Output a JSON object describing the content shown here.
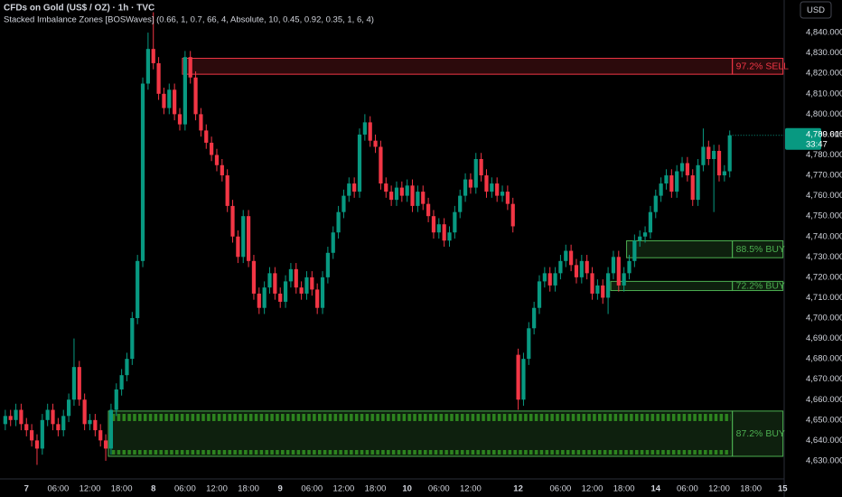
{
  "chart_data": {
    "type": "candlestick",
    "title": "CFDs on Gold (US$ / OZ) · 1h · TVC",
    "subtitle": "Stacked Imbalance Zones [BOSWaves] (0.66, 1, 0.7, 66, 4, Absolute, 10, 0.45, 0.92, 0.35, 1, 6, 4)",
    "currency": "USD",
    "up_color": "#089981",
    "down_color": "#f23645",
    "grid": false,
    "open": [
      4648,
      4652,
      4650,
      4655,
      4648,
      4645,
      4640,
      4636,
      4650,
      4655,
      4648,
      4645,
      4652,
      4660,
      4676,
      4660,
      4648,
      4650,
      4645,
      4640,
      4636,
      4655,
      4665,
      4672,
      4680,
      4700,
      4728,
      4815,
      4832,
      4825,
      4810,
      4803,
      4812,
      4800,
      4795,
      4828,
      4818,
      4800,
      4792,
      4786,
      4780,
      4775,
      4770,
      4755,
      4740,
      4730,
      4750,
      4728,
      4712,
      4705,
      4715,
      4722,
      4712,
      4708,
      4718,
      4724,
      4715,
      4712,
      4720,
      4714,
      4705,
      4720,
      4732,
      4742,
      4752,
      4760,
      4766,
      4762,
      4790,
      4796,
      4787,
      4784,
      4766,
      4762,
      4758,
      4764,
      4760,
      4765,
      4755,
      4762,
      4756,
      4750,
      4742,
      4746,
      4738,
      4742,
      4752,
      4760,
      4768,
      4764,
      4778,
      4770,
      4762,
      4766,
      4760,
      4762,
      4756,
      4682,
      4660,
      4680,
      4695,
      4705,
      4718,
      4722,
      4716,
      4722,
      4728,
      4733,
      4726,
      4720,
      4728,
      4722,
      4712,
      4716,
      4710,
      4722,
      4730,
      4716,
      4722,
      4728,
      4738,
      4740,
      4742,
      4752,
      4760,
      4766,
      4770,
      4762,
      4772,
      4776,
      4770,
      4758,
      4775,
      4784,
      4778,
      4782,
      4770,
      4772
    ],
    "high": [
      4655,
      4655,
      4658,
      4658,
      4651,
      4648,
      4643,
      4653,
      4658,
      4658,
      4651,
      4655,
      4663,
      4690,
      4679,
      4663,
      4653,
      4653,
      4648,
      4643,
      4658,
      4668,
      4675,
      4683,
      4703,
      4731,
      4818,
      4840,
      4850,
      4828,
      4813,
      4815,
      4815,
      4803,
      4831,
      4831,
      4821,
      4803,
      4795,
      4789,
      4783,
      4778,
      4773,
      4758,
      4743,
      4753,
      4753,
      4731,
      4715,
      4718,
      4725,
      4725,
      4715,
      4721,
      4727,
      4727,
      4718,
      4723,
      4723,
      4717,
      4723,
      4735,
      4745,
      4755,
      4763,
      4769,
      4769,
      4793,
      4800,
      4799,
      4790,
      4787,
      4769,
      4765,
      4767,
      4767,
      4768,
      4768,
      4765,
      4765,
      4759,
      4753,
      4749,
      4749,
      4745,
      4755,
      4763,
      4771,
      4771,
      4781,
      4781,
      4773,
      4769,
      4769,
      4765,
      4765,
      4759,
      4685,
      4683,
      4698,
      4708,
      4721,
      4725,
      4725,
      4725,
      4731,
      4736,
      4736,
      4729,
      4731,
      4731,
      4725,
      4719,
      4719,
      4725,
      4733,
      4733,
      4725,
      4731,
      4741,
      4743,
      4745,
      4755,
      4763,
      4769,
      4773,
      4773,
      4775,
      4779,
      4779,
      4773,
      4778,
      4793,
      4787,
      4785,
      4785,
      4775,
      4792
    ],
    "low": [
      4645,
      4647,
      4647,
      4645,
      4642,
      4637,
      4628,
      4633,
      4647,
      4645,
      4642,
      4642,
      4649,
      4657,
      4657,
      4645,
      4645,
      4642,
      4637,
      4630,
      4633,
      4652,
      4662,
      4669,
      4677,
      4697,
      4725,
      4812,
      4822,
      4807,
      4800,
      4800,
      4797,
      4792,
      4792,
      4815,
      4797,
      4789,
      4783,
      4777,
      4772,
      4767,
      4752,
      4737,
      4727,
      4727,
      4725,
      4709,
      4702,
      4702,
      4712,
      4709,
      4705,
      4705,
      4715,
      4712,
      4709,
      4709,
      4711,
      4702,
      4702,
      4717,
      4729,
      4739,
      4749,
      4757,
      4759,
      4759,
      4787,
      4784,
      4781,
      4763,
      4759,
      4755,
      4755,
      4757,
      4757,
      4752,
      4752,
      4753,
      4747,
      4739,
      4739,
      4735,
      4735,
      4739,
      4749,
      4757,
      4761,
      4761,
      4767,
      4759,
      4759,
      4757,
      4757,
      4753,
      4742,
      4655,
      4657,
      4677,
      4692,
      4702,
      4715,
      4713,
      4713,
      4719,
      4725,
      4723,
      4717,
      4717,
      4719,
      4709,
      4709,
      4707,
      4702,
      4719,
      4713,
      4713,
      4719,
      4725,
      4735,
      4737,
      4739,
      4749,
      4757,
      4763,
      4759,
      4759,
      4769,
      4767,
      4755,
      4755,
      4772,
      4775,
      4752,
      4767,
      4767,
      4769
    ],
    "close": [
      4652,
      4650,
      4655,
      4648,
      4645,
      4640,
      4636,
      4650,
      4655,
      4648,
      4645,
      4652,
      4660,
      4676,
      4660,
      4648,
      4650,
      4645,
      4640,
      4636,
      4655,
      4665,
      4672,
      4680,
      4700,
      4728,
      4815,
      4832,
      4825,
      4810,
      4803,
      4812,
      4800,
      4795,
      4828,
      4818,
      4800,
      4792,
      4786,
      4780,
      4775,
      4770,
      4755,
      4740,
      4730,
      4750,
      4728,
      4712,
      4705,
      4715,
      4722,
      4712,
      4708,
      4718,
      4724,
      4715,
      4712,
      4720,
      4714,
      4705,
      4720,
      4732,
      4742,
      4752,
      4760,
      4766,
      4762,
      4790,
      4796,
      4787,
      4784,
      4766,
      4762,
      4758,
      4764,
      4760,
      4765,
      4755,
      4762,
      4756,
      4750,
      4742,
      4746,
      4738,
      4742,
      4752,
      4760,
      4768,
      4764,
      4778,
      4770,
      4762,
      4766,
      4760,
      4762,
      4756,
      4745,
      4660,
      4680,
      4695,
      4705,
      4718,
      4722,
      4716,
      4722,
      4728,
      4733,
      4726,
      4720,
      4728,
      4722,
      4712,
      4716,
      4710,
      4722,
      4730,
      4716,
      4722,
      4728,
      4738,
      4740,
      4742,
      4752,
      4760,
      4766,
      4770,
      4762,
      4772,
      4776,
      4770,
      4758,
      4775,
      4784,
      4778,
      4782,
      4770,
      4772,
      4789.615
    ],
    "xlim": [
      -1,
      147.3
    ],
    "xticks": [
      {
        "value": 4,
        "label": "7"
      },
      {
        "value": 10,
        "label": "06:00"
      },
      {
        "value": 16,
        "label": "12:00"
      },
      {
        "value": 22,
        "label": "18:00"
      },
      {
        "value": 28,
        "label": "8"
      },
      {
        "value": 34,
        "label": "06:00"
      },
      {
        "value": 40,
        "label": "12:00"
      },
      {
        "value": 46,
        "label": "18:00"
      },
      {
        "value": 52,
        "label": "9"
      },
      {
        "value": 58,
        "label": "06:00"
      },
      {
        "value": 64,
        "label": "12:00"
      },
      {
        "value": 70,
        "label": "18:00"
      },
      {
        "value": 76,
        "label": "10"
      },
      {
        "value": 82,
        "label": "06:00"
      },
      {
        "value": 88,
        "label": "12:00"
      },
      {
        "value": 97,
        "label": "12"
      },
      {
        "value": 105,
        "label": "06:00"
      },
      {
        "value": 111,
        "label": "12:00"
      },
      {
        "value": 117,
        "label": "18:00"
      },
      {
        "value": 123,
        "label": "14"
      },
      {
        "value": 129,
        "label": "06:00"
      },
      {
        "value": 135,
        "label": "12:00"
      },
      {
        "value": 141,
        "label": "18:00"
      },
      {
        "value": 147,
        "label": "15"
      }
    ],
    "ylim": [
      4622,
      4856
    ],
    "yticks": [
      {
        "value": 4630,
        "label": "4,630.000"
      },
      {
        "value": 4640,
        "label": "4,640.000"
      },
      {
        "value": 4650,
        "label": "4,650.000"
      },
      {
        "value": 4660,
        "label": "4,660.000"
      },
      {
        "value": 4670,
        "label": "4,670.000"
      },
      {
        "value": 4680,
        "label": "4,680.000"
      },
      {
        "value": 4690,
        "label": "4,690.000"
      },
      {
        "value": 4700,
        "label": "4,700.000"
      },
      {
        "value": 4710,
        "label": "4,710.000"
      },
      {
        "value": 4720,
        "label": "4,720.000"
      },
      {
        "value": 4730,
        "label": "4,730.000"
      },
      {
        "value": 4740,
        "label": "4,740.000"
      },
      {
        "value": 4750,
        "label": "4,750.000"
      },
      {
        "value": 4760,
        "label": "4,760.000"
      },
      {
        "value": 4770,
        "label": "4,770.000"
      },
      {
        "value": 4780,
        "label": "4,780.000"
      },
      {
        "value": 4790,
        "label": "4,790.000"
      },
      {
        "value": 4800,
        "label": "4,800.000"
      },
      {
        "value": 4810,
        "label": "4,810.000"
      },
      {
        "value": 4820,
        "label": "4,820.000"
      },
      {
        "value": 4830,
        "label": "4,830.000"
      },
      {
        "value": 4840,
        "label": "4,840.000"
      }
    ],
    "zones": [
      {
        "label": "97.2% SELL",
        "top": 4827.4,
        "bottom": 4819.6,
        "start": 34,
        "end": 137,
        "color": "#f23645"
      },
      {
        "label": "88.5% BUY",
        "top": 4737.9,
        "bottom": 4729.6,
        "start": 118,
        "end": 137,
        "color": "#4caf50"
      },
      {
        "label": "72.2% BUY",
        "top": 4718,
        "bottom": 4713.5,
        "start": 115,
        "end": 137,
        "color": "#4caf50"
      },
      {
        "label": "87.2% BUY",
        "top": 4654.4,
        "bottom": 4632.2,
        "start": 20,
        "end": 137,
        "color": "#4caf50"
      }
    ],
    "last_price": 4789.615,
    "last_price_label": "4,789.615",
    "countdown": "33:47"
  }
}
